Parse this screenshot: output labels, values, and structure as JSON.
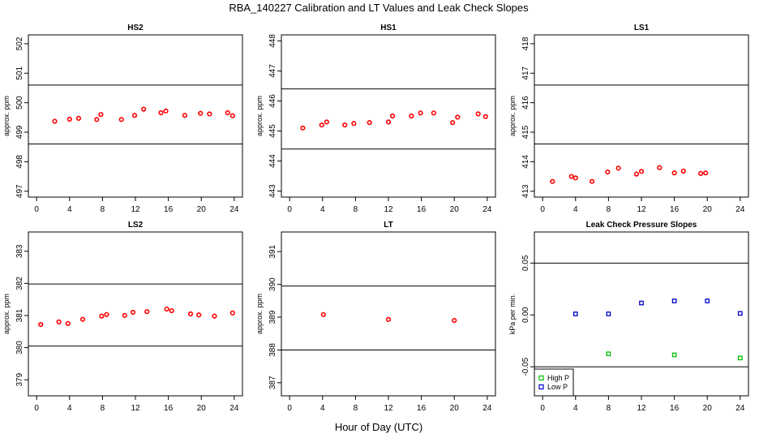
{
  "title": "RBA_140227  Calibration and LT Values and Leak Check Slopes",
  "xlabel": "Hour of Day (UTC)",
  "colors": {
    "calibration": "#ff0000",
    "high_p": "#00c000",
    "low_p": "#0000cc",
    "axes": "#000000"
  },
  "chart_data": [
    {
      "type": "scatter",
      "title": "HS2",
      "ylabel": "approx. ppm",
      "xlim": [
        -1,
        25
      ],
      "ylim": [
        496.8,
        502.3
      ],
      "xticks": [
        "0",
        "4",
        "8",
        "12",
        "16",
        "20",
        "24"
      ],
      "yticks": [
        "497",
        "498",
        "499",
        "500",
        "501",
        "502"
      ],
      "ref_lines": [
        498.6,
        500.6
      ],
      "series": [
        {
          "name": "values",
          "marker": "circle",
          "x": [
            2.2,
            4.0,
            5.1,
            7.3,
            7.8,
            10.3,
            11.9,
            13.0,
            15.1,
            15.7,
            18.0,
            19.9,
            21.0,
            23.2,
            23.8
          ],
          "y": [
            499.37,
            499.44,
            499.47,
            499.43,
            499.6,
            499.43,
            499.57,
            499.78,
            499.66,
            499.72,
            499.57,
            499.64,
            499.62,
            499.66,
            499.56
          ]
        }
      ]
    },
    {
      "type": "scatter",
      "title": "HS1",
      "ylabel": "approx. ppm",
      "xlim": [
        -1,
        25
      ],
      "ylim": [
        442.8,
        448.2
      ],
      "xticks": [
        "0",
        "4",
        "8",
        "12",
        "16",
        "20",
        "24"
      ],
      "yticks": [
        "443",
        "444",
        "445",
        "446",
        "447",
        "448"
      ],
      "ref_lines": [
        444.4,
        446.4
      ],
      "series": [
        {
          "name": "values",
          "marker": "circle",
          "x": [
            1.6,
            3.9,
            4.5,
            6.7,
            7.8,
            9.7,
            12.0,
            12.5,
            14.8,
            15.9,
            17.5,
            19.8,
            20.4,
            22.9,
            23.8
          ],
          "y": [
            445.1,
            445.2,
            445.3,
            445.2,
            445.25,
            445.28,
            445.3,
            445.5,
            445.5,
            445.6,
            445.6,
            445.28,
            445.46,
            445.57,
            445.48
          ]
        }
      ]
    },
    {
      "type": "scatter",
      "title": "LS1",
      "ylabel": "approx. ppm",
      "xlim": [
        -1,
        25
      ],
      "ylim": [
        412.8,
        418.3
      ],
      "xticks": [
        "0",
        "4",
        "8",
        "12",
        "16",
        "20",
        "24"
      ],
      "yticks": [
        "413",
        "414",
        "415",
        "416",
        "417",
        "418"
      ],
      "ref_lines": [
        414.6,
        416.6
      ],
      "series": [
        {
          "name": "values",
          "marker": "circle",
          "x": [
            1.2,
            3.5,
            4.0,
            6.0,
            7.9,
            9.2,
            11.4,
            12.0,
            14.2,
            16.0,
            17.1,
            19.2,
            19.8
          ],
          "y": [
            413.33,
            413.5,
            413.45,
            413.33,
            413.65,
            413.78,
            413.58,
            413.67,
            413.8,
            413.62,
            413.68,
            413.6,
            413.62
          ]
        }
      ]
    },
    {
      "type": "scatter",
      "title": "LS2",
      "ylabel": "approx. ppm",
      "xlim": [
        -1,
        25
      ],
      "ylim": [
        378.5,
        383.6
      ],
      "xticks": [
        "0",
        "4",
        "8",
        "12",
        "16",
        "20",
        "24"
      ],
      "yticks": [
        "379",
        "380",
        "381",
        "382",
        "383"
      ],
      "ref_lines": [
        380.05,
        381.98
      ],
      "series": [
        {
          "name": "values",
          "marker": "circle",
          "x": [
            0.5,
            2.7,
            3.8,
            5.6,
            7.9,
            8.5,
            10.7,
            11.7,
            13.4,
            15.8,
            16.4,
            18.7,
            19.7,
            21.6,
            23.8
          ],
          "y": [
            380.72,
            380.8,
            380.75,
            380.88,
            380.98,
            381.03,
            381.0,
            381.1,
            381.12,
            381.2,
            381.15,
            381.05,
            381.02,
            380.98,
            381.08
          ]
        }
      ]
    },
    {
      "type": "scatter",
      "title": "LT",
      "ylabel": "approx. ppm",
      "xlim": [
        -1,
        25
      ],
      "ylim": [
        386.6,
        391.6
      ],
      "xticks": [
        "0",
        "4",
        "8",
        "12",
        "16",
        "20",
        "24"
      ],
      "yticks": [
        "387",
        "388",
        "389",
        "390",
        "391"
      ],
      "ref_lines": [
        388.0,
        389.95
      ],
      "series": [
        {
          "name": "values",
          "marker": "circle",
          "x": [
            4.1,
            12.0,
            20.0
          ],
          "y": [
            389.08,
            388.93,
            388.9
          ]
        }
      ]
    },
    {
      "type": "scatter",
      "title": "Leak Check Pressure Slopes",
      "ylabel": "kPa per min.",
      "xlim": [
        -1,
        25
      ],
      "ylim": [
        -0.078,
        0.08
      ],
      "xticks": [
        "0",
        "4",
        "8",
        "12",
        "16",
        "20",
        "24"
      ],
      "yticks": [
        "-0.05",
        "0.00",
        "0.05"
      ],
      "ytick_values": [
        -0.05,
        0.0,
        0.05
      ],
      "ref_lines": [
        0.05,
        -0.05
      ],
      "series": [
        {
          "name": "High P",
          "marker": "square",
          "x": [
            8.0,
            16.0,
            24.0
          ],
          "y": [
            -0.0375,
            -0.0385,
            -0.0415
          ]
        },
        {
          "name": "Low P",
          "marker": "square",
          "x": [
            4.0,
            8.0,
            12.0,
            16.0,
            20.0,
            24.0
          ],
          "y": [
            0.001,
            0.001,
            0.0115,
            0.0135,
            0.0135,
            0.0015
          ]
        }
      ],
      "legend": {
        "position": "bottom-left",
        "entries": [
          "High P",
          "Low P"
        ]
      }
    }
  ]
}
